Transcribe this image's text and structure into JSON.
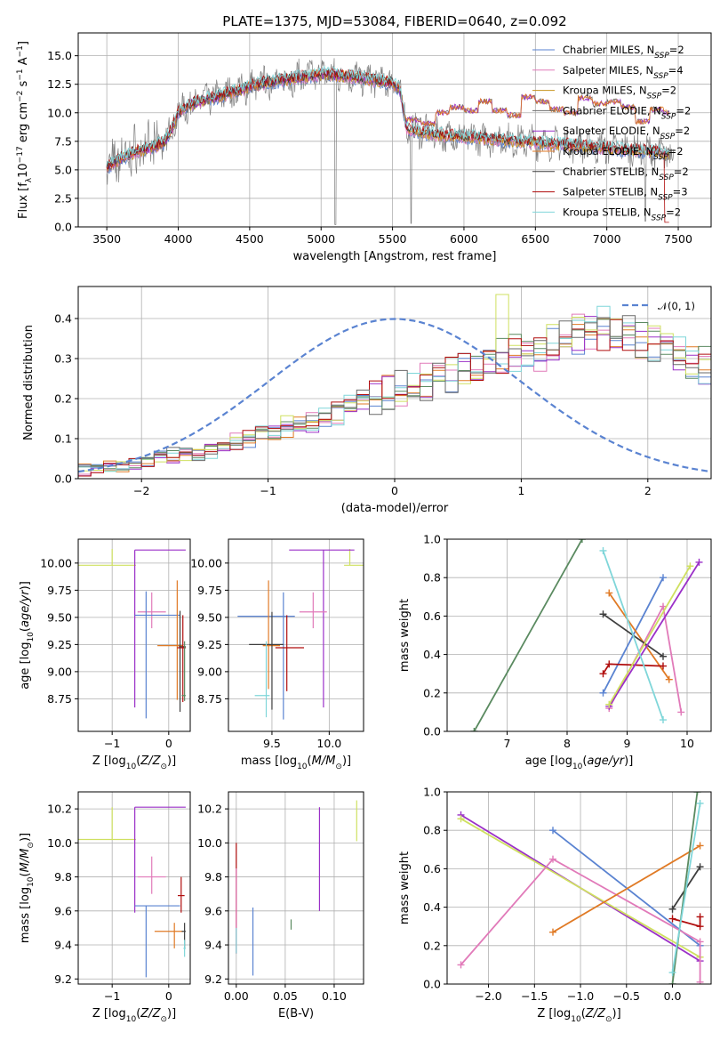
{
  "title": "PLATE=1375, MJD=53084, FIBERID=0640, z=0.092",
  "colors": {
    "Chabrier MILES": "#5a83d1",
    "Salpeter MILES": "#e17ab9",
    "Kroupa MILES": "#c79420",
    "Chabrier ELODIE": "#6a6a6a",
    "Salpeter ELODIE": "#9b30c8",
    "Kroupa ELODIE": "#e07a25",
    "Chabrier STELIB": "#3e3e3e",
    "Salpeter STELIB": "#b00d0d",
    "Kroupa STELIB": "#7fd6d9",
    "green": "#5a8a60",
    "yellow": "#cfe060",
    "normal": "#5a83d1"
  },
  "chart_data": [
    {
      "id": "spectrum",
      "type": "line",
      "title": "PLATE=1375, MJD=53084, FIBERID=0640, z=0.092",
      "xlabel": "wavelength [Angstrom, rest frame]",
      "ylabel": "Flux [f_λ10^-17 erg cm^-2 s^-1 A^-1]",
      "xlim": [
        3300,
        7730
      ],
      "ylim": [
        0,
        17
      ],
      "xticks": [
        "3500",
        "4000",
        "4500",
        "5000",
        "5500",
        "6000",
        "6500",
        "7000",
        "7500"
      ],
      "yticks": [
        "0.0",
        "2.5",
        "5.0",
        "7.5",
        "10.0",
        "12.5",
        "15.0"
      ],
      "legend_position": "upper right",
      "legend": [
        {
          "label": "Chabrier MILES, N",
          "sub": "SSP",
          "suffix": "=2"
        },
        {
          "label": "Salpeter MILES, N",
          "sub": "SSP",
          "suffix": "=4"
        },
        {
          "label": "Kroupa MILES, N",
          "sub": "SSP",
          "suffix": "=2"
        },
        {
          "label": "Chabrier ELODIE, N",
          "sub": "SSP",
          "suffix": "=2"
        },
        {
          "label": "Salpeter ELODIE, N",
          "sub": "SSP",
          "suffix": "=2"
        },
        {
          "label": "Kroupa ELODIE, N",
          "sub": "SSP",
          "suffix": "=2"
        },
        {
          "label": "Chabrier STELIB, N",
          "sub": "SSP",
          "suffix": "=2"
        },
        {
          "label": "Salpeter STELIB, N",
          "sub": "SSP",
          "suffix": "=3"
        },
        {
          "label": "Kroupa STELIB, N",
          "sub": "SSP",
          "suffix": "=2"
        }
      ],
      "continuum": {
        "x": [
          3500,
          3600,
          3700,
          3800,
          3900,
          3950,
          4000,
          4100,
          4200,
          4300,
          4400,
          4500,
          4600,
          4700,
          4800,
          4900,
          5000,
          5100,
          5200,
          5300,
          5400,
          5500,
          5550,
          5600,
          5650,
          5700,
          5800,
          5900,
          6000,
          6100,
          6200,
          6300,
          6400,
          6500,
          6600,
          6700,
          6800,
          6900,
          7000,
          7100,
          7200,
          7300,
          7400,
          7500
        ],
        "y": [
          5.2,
          6.0,
          6.6,
          6.9,
          7.4,
          8.5,
          10.0,
          10.8,
          11.2,
          11.5,
          11.9,
          12.3,
          12.6,
          12.8,
          13.0,
          13.2,
          13.4,
          13.3,
          13.2,
          13.0,
          12.8,
          12.6,
          12.1,
          8.6,
          8.4,
          8.3,
          8.1,
          8.0,
          7.9,
          7.8,
          7.7,
          7.6,
          7.5,
          7.4,
          7.3,
          7.2,
          7.1,
          7.0,
          6.9,
          6.8,
          6.7,
          6.6,
          6.5,
          6.4
        ]
      },
      "elodie_blocks": {
        "x": [
          5600,
          5700,
          5800,
          5900,
          6000,
          6100,
          6200,
          6300,
          6400,
          6500,
          6600,
          6700,
          6800,
          6900,
          7000,
          7100,
          7200,
          7300,
          7400
        ],
        "y": [
          9.4,
          9.0,
          10.0,
          10.5,
          10.2,
          11.0,
          10.2,
          9.8,
          11.4,
          11.0,
          10.3,
          10.0,
          11.3,
          10.8,
          11.0,
          10.5,
          9.2,
          10.3,
          10.0
        ]
      }
    },
    {
      "id": "residuals",
      "type": "histogram",
      "xlabel": "(data-model)/error",
      "ylabel": "Normed distribution",
      "xlim": [
        -2.5,
        2.5
      ],
      "ylim": [
        0,
        0.48
      ],
      "xticks": [
        "−2",
        "−1",
        "0",
        "1",
        "2"
      ],
      "yticks": [
        "0.0",
        "0.1",
        "0.2",
        "0.3",
        "0.4"
      ],
      "normal_label": "𝒩(0, 1)",
      "bin_width": 0.1,
      "bin_start": -2.5,
      "base_profile": [
        0.02,
        0.025,
        0.03,
        0.035,
        0.04,
        0.045,
        0.05,
        0.055,
        0.06,
        0.065,
        0.07,
        0.08,
        0.09,
        0.1,
        0.11,
        0.12,
        0.13,
        0.14,
        0.15,
        0.16,
        0.17,
        0.18,
        0.19,
        0.2,
        0.21,
        0.22,
        0.23,
        0.24,
        0.25,
        0.26,
        0.27,
        0.28,
        0.29,
        0.3,
        0.31,
        0.32,
        0.33,
        0.34,
        0.35,
        0.355,
        0.36,
        0.36,
        0.35,
        0.34,
        0.33,
        0.32,
        0.31,
        0.3,
        0.29,
        0.28
      ]
    },
    {
      "id": "age_vs_Z",
      "type": "errorbar",
      "xlabel": "Z [log10(Z/Z⊙)]",
      "ylabel": "age  [log10(age/yr)]",
      "xlim": [
        -1.6,
        0.38
      ],
      "ylim": [
        8.45,
        10.22
      ],
      "xticks": [
        "−1",
        "0"
      ],
      "yticks": [
        "8.75",
        "9.00",
        "9.25",
        "9.50",
        "9.75",
        "10.00"
      ]
    },
    {
      "id": "age_vs_mass",
      "type": "errorbar",
      "xlabel": "mass [log10(M/M⊙)]",
      "ylabel": "",
      "xlim": [
        9.12,
        10.3
      ],
      "ylim": [
        8.45,
        10.22
      ],
      "xticks": [
        "9.5",
        "10.0"
      ],
      "yticks": [
        "8.75",
        "9.00",
        "9.25",
        "9.50",
        "9.75",
        "10.00"
      ]
    },
    {
      "id": "weight_vs_age",
      "type": "line",
      "xlabel": "age  [log10(age/yr)]",
      "ylabel": "mass weight",
      "xlim": [
        6.0,
        10.4
      ],
      "ylim": [
        0,
        1.0
      ],
      "xticks": [
        "7",
        "8",
        "9",
        "10"
      ],
      "yticks": [
        "0.0",
        "0.2",
        "0.4",
        "0.6",
        "0.8",
        "1.0"
      ]
    },
    {
      "id": "mass_vs_Z",
      "type": "errorbar",
      "xlabel": "Z [log10(Z/Z⊙)]",
      "ylabel": "mass [log10(M/M⊙)]",
      "xlim": [
        -1.6,
        0.38
      ],
      "ylim": [
        9.17,
        10.3
      ],
      "xticks": [
        "−1",
        "0"
      ],
      "yticks": [
        "9.2",
        "9.4",
        "9.6",
        "9.8",
        "10.0",
        "10.2"
      ]
    },
    {
      "id": "mass_vs_ebv",
      "type": "errorbar",
      "xlabel": "E(B-V)",
      "ylabel": "",
      "xlim": [
        -0.008,
        0.13
      ],
      "ylim": [
        9.17,
        10.3
      ],
      "xticks": [
        "0.00",
        "0.05",
        "0.10"
      ],
      "yticks": [
        "9.2",
        "9.4",
        "9.6",
        "9.8",
        "10.0",
        "10.2"
      ]
    },
    {
      "id": "weight_vs_Z",
      "type": "line",
      "xlabel": "Z [log10(Z/Z⊙)]",
      "ylabel": "mass weight",
      "xlim": [
        -2.45,
        0.42
      ],
      "ylim": [
        0,
        1.0
      ],
      "xticks": [
        "−2.0",
        "−1.5",
        "−1.0",
        "−0.5",
        "0.0"
      ],
      "yticks": [
        "0.0",
        "0.2",
        "0.4",
        "0.6",
        "0.8",
        "1.0"
      ]
    }
  ]
}
